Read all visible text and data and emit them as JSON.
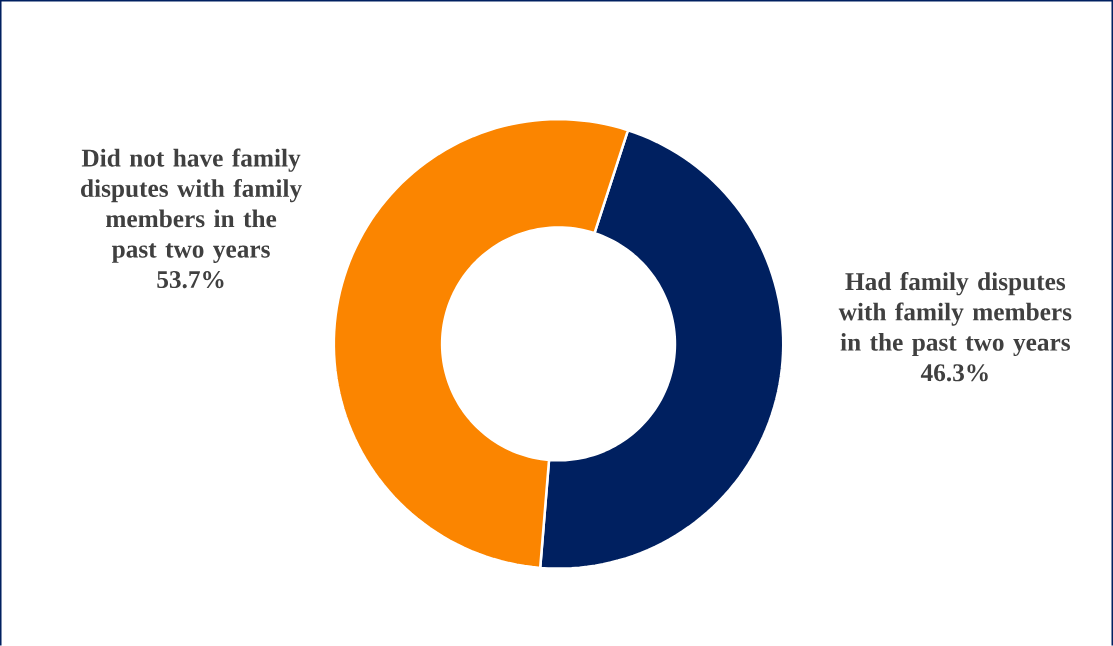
{
  "chart_data": {
    "type": "donut",
    "categories": [
      "Had family disputes with family members in the past two years",
      "Did not have family disputes with family members in the past two years"
    ],
    "values": [
      46.3,
      53.7
    ],
    "value_labels": [
      "46.3%",
      "53.7%"
    ],
    "colors": [
      "#002060",
      "#fb8500"
    ]
  }
}
